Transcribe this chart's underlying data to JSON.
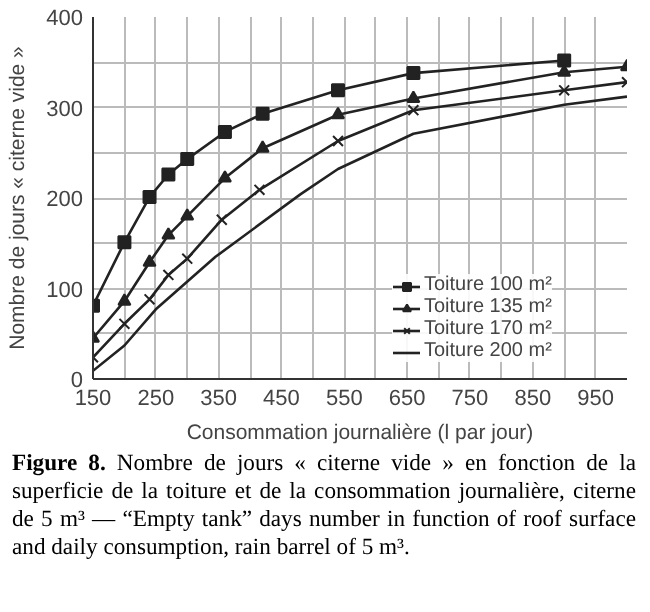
{
  "chart_data": {
    "type": "line",
    "xlabel": "Consommation journalière (l par jour)",
    "ylabel": "Nombre de jours « citerne vide »",
    "xlim": [
      150,
      1000
    ],
    "ylim": [
      0,
      400
    ],
    "xticks": [
      150,
      {
        "value": 200,
        "label": null
      },
      250,
      {
        "value": 300,
        "label": null
      },
      350,
      {
        "value": 400,
        "label": null
      },
      450,
      {
        "value": 500,
        "label": null
      },
      550,
      {
        "value": 600,
        "label": null
      },
      650,
      {
        "value": 700,
        "label": null
      },
      750,
      {
        "value": 800,
        "label": null
      },
      850,
      {
        "value": 900,
        "label": null
      },
      950
    ],
    "yticks": [
      0,
      {
        "value": 50,
        "label": null
      },
      100,
      {
        "value": 150,
        "label": null
      },
      200,
      {
        "value": 250,
        "label": null
      },
      300,
      {
        "value": 350,
        "label": null
      },
      400
    ],
    "grid": true,
    "legend": "right",
    "line_style": "solid",
    "series": [
      {
        "name": "Toiture 100 m²",
        "color": "#222222",
        "marker": "square",
        "x": [
          150,
          200,
          240,
          270,
          300,
          360,
          420,
          540,
          660,
          900
        ],
        "values": [
          81,
          151,
          201,
          226,
          243,
          273,
          293,
          319,
          338,
          352
        ]
      },
      {
        "name": "Toiture 135 m²",
        "color": "#222222",
        "marker": "triangle",
        "x": [
          150,
          200,
          240,
          270,
          300,
          360,
          420,
          540,
          660,
          900,
          1000
        ],
        "values": [
          45,
          86,
          129,
          159,
          180,
          222,
          255,
          292,
          310,
          339,
          345
        ]
      },
      {
        "name": "Toiture 170 m²",
        "color": "#222222",
        "marker": "cross",
        "x": [
          150,
          200,
          240,
          270,
          300,
          355,
          415,
          540,
          660,
          900,
          1000
        ],
        "values": [
          24,
          61,
          88,
          115,
          133,
          176,
          209,
          263,
          297,
          319,
          328
        ]
      },
      {
        "name": "Toiture 200 m²",
        "color": "#222222",
        "marker": "none",
        "x": [
          150,
          200,
          250,
          345,
          480,
          540,
          660,
          900,
          1000
        ],
        "values": [
          9,
          37,
          77,
          135,
          204,
          232,
          271,
          303,
          312
        ]
      }
    ],
    "annotations": [
      "Figure 8. Nombre de jours « citerne vide » en fonction de la superficie de la toiture et de la consommation journalière, citerne de 5 m³ — “Empty tank” days number in function of roof surface and daily consumption, rain barrel of 5 m³."
    ]
  }
}
